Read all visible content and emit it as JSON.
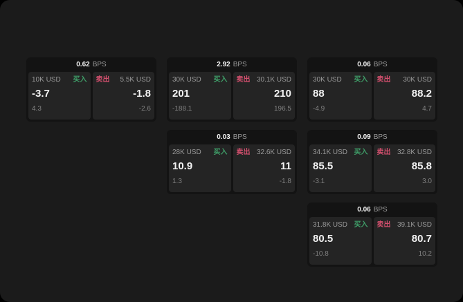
{
  "labels": {
    "buy": "买入",
    "sell": "卖出",
    "bps_unit": "BPS"
  },
  "colors": {
    "page_bg": "#1b1b1b",
    "card_bg": "#131313",
    "panel_bg": "#242424",
    "buy": "#3f9e68",
    "sell": "#d14f6d",
    "value": "#f2f2f2",
    "label": "#9a9a9a",
    "sub": "#808080"
  },
  "cards": [
    {
      "bps": "0.62",
      "buy": {
        "amount": "10K USD",
        "value": "-3.7",
        "sub": "4.3"
      },
      "sell": {
        "amount": "5.5K USD",
        "value": "-1.8",
        "sub": "-2.6"
      }
    },
    {
      "bps": "2.92",
      "buy": {
        "amount": "30K USD",
        "value": "201",
        "sub": "-188.1"
      },
      "sell": {
        "amount": "30.1K USD",
        "value": "210",
        "sub": "196.5"
      }
    },
    {
      "bps": "0.06",
      "buy": {
        "amount": "30K USD",
        "value": "88",
        "sub": "-4.9"
      },
      "sell": {
        "amount": "30K USD",
        "value": "88.2",
        "sub": "4.7"
      }
    },
    {
      "bps": "0.03",
      "buy": {
        "amount": "28K USD",
        "value": "10.9",
        "sub": "1.3"
      },
      "sell": {
        "amount": "32.6K USD",
        "value": "11",
        "sub": "-1.8"
      }
    },
    {
      "bps": "0.09",
      "buy": {
        "amount": "34.1K USD",
        "value": "85.5",
        "sub": "-3.1"
      },
      "sell": {
        "amount": "32.8K USD",
        "value": "85.8",
        "sub": "3.0"
      }
    },
    {
      "bps": "0.06",
      "buy": {
        "amount": "31.8K USD",
        "value": "80.5",
        "sub": "-10.8"
      },
      "sell": {
        "amount": "39.1K USD",
        "value": "80.7",
        "sub": "10.2"
      }
    }
  ]
}
